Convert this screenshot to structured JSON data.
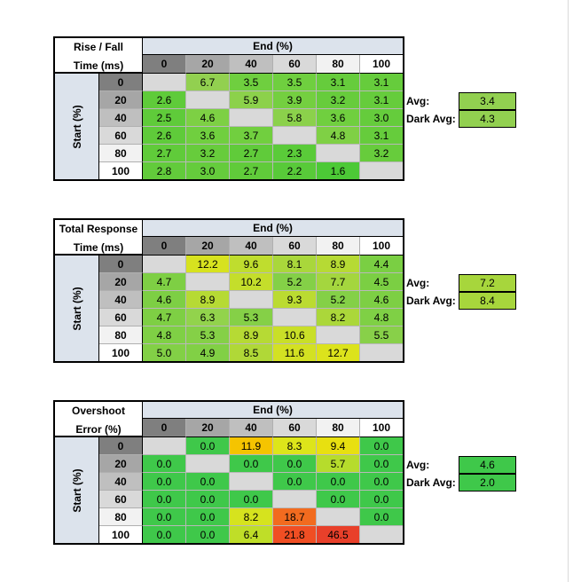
{
  "tables": [
    {
      "title_line1": "Rise / Fall",
      "title_line2": "Time (ms)",
      "end_label": "End (%)",
      "start_label": "Start (%)",
      "columns": [
        "0",
        "20",
        "40",
        "60",
        "80",
        "100"
      ],
      "rows": [
        {
          "label": "0",
          "cells": [
            {
              "v": "",
              "c": "#d9d9d9"
            },
            {
              "v": "6.7",
              "c": "#92d050"
            },
            {
              "v": "3.5",
              "c": "#6fcf3f"
            },
            {
              "v": "3.5",
              "c": "#6fcf3f"
            },
            {
              "v": "3.1",
              "c": "#66cc3c"
            },
            {
              "v": "3.1",
              "c": "#66cc3c"
            }
          ]
        },
        {
          "label": "20",
          "cells": [
            {
              "v": "2.6",
              "c": "#5fcb3a"
            },
            {
              "v": "",
              "c": "#d9d9d9"
            },
            {
              "v": "5.9",
              "c": "#8cd14b"
            },
            {
              "v": "3.9",
              "c": "#74cf40"
            },
            {
              "v": "3.2",
              "c": "#67cc3c"
            },
            {
              "v": "3.1",
              "c": "#66cc3c"
            }
          ]
        },
        {
          "label": "40",
          "cells": [
            {
              "v": "2.5",
              "c": "#5fcb3a"
            },
            {
              "v": "4.6",
              "c": "#7dd044"
            },
            {
              "v": "",
              "c": "#d9d9d9"
            },
            {
              "v": "5.8",
              "c": "#8bd14b"
            },
            {
              "v": "3.6",
              "c": "#70cf3f"
            },
            {
              "v": "3.0",
              "c": "#65cc3c"
            }
          ]
        },
        {
          "label": "60",
          "cells": [
            {
              "v": "2.6",
              "c": "#5fcb3a"
            },
            {
              "v": "3.6",
              "c": "#70cf3f"
            },
            {
              "v": "3.7",
              "c": "#71cf3f"
            },
            {
              "v": "",
              "c": "#d9d9d9"
            },
            {
              "v": "4.8",
              "c": "#7fd045"
            },
            {
              "v": "3.1",
              "c": "#66cc3c"
            }
          ]
        },
        {
          "label": "80",
          "cells": [
            {
              "v": "2.7",
              "c": "#60cb3a"
            },
            {
              "v": "3.2",
              "c": "#67cc3c"
            },
            {
              "v": "2.7",
              "c": "#60cb3a"
            },
            {
              "v": "2.3",
              "c": "#5acb39"
            },
            {
              "v": "",
              "c": "#d9d9d9"
            },
            {
              "v": "3.2",
              "c": "#67cc3c"
            }
          ]
        },
        {
          "label": "100",
          "cells": [
            {
              "v": "2.8",
              "c": "#62cb3b"
            },
            {
              "v": "3.0",
              "c": "#65cc3c"
            },
            {
              "v": "2.7",
              "c": "#60cb3a"
            },
            {
              "v": "2.2",
              "c": "#58ca39"
            },
            {
              "v": "1.6",
              "c": "#4cc936"
            },
            {
              "v": "",
              "c": "#d9d9d9"
            }
          ]
        }
      ],
      "avg_label": "Avg:",
      "avg_value": "3.4",
      "dark_avg_label": "Dark Avg:",
      "dark_avg_value": "4.3",
      "avg_color": "#92d050"
    },
    {
      "title_line1": "Total Response",
      "title_line2": "Time (ms)",
      "end_label": "End (%)",
      "start_label": "Start (%)",
      "columns": [
        "0",
        "20",
        "40",
        "60",
        "80",
        "100"
      ],
      "rows": [
        {
          "label": "0",
          "cells": [
            {
              "v": "",
              "c": "#d9d9d9"
            },
            {
              "v": "12.2",
              "c": "#d7e21f"
            },
            {
              "v": "9.6",
              "c": "#bfdd2e"
            },
            {
              "v": "8.1",
              "c": "#a9d73b"
            },
            {
              "v": "8.9",
              "c": "#b6da34"
            },
            {
              "v": "4.4",
              "c": "#7acf43"
            }
          ]
        },
        {
          "label": "20",
          "cells": [
            {
              "v": "4.7",
              "c": "#7ecf44"
            },
            {
              "v": "",
              "c": "#d9d9d9"
            },
            {
              "v": "10.2",
              "c": "#c4de2b"
            },
            {
              "v": "5.2",
              "c": "#84d047"
            },
            {
              "v": "7.7",
              "c": "#a4d63e"
            },
            {
              "v": "4.5",
              "c": "#7bcf43"
            }
          ]
        },
        {
          "label": "40",
          "cells": [
            {
              "v": "4.6",
              "c": "#7dcf44"
            },
            {
              "v": "8.9",
              "c": "#b6da34"
            },
            {
              "v": "",
              "c": "#d9d9d9"
            },
            {
              "v": "9.3",
              "c": "#bbdb31"
            },
            {
              "v": "5.2",
              "c": "#84d047"
            },
            {
              "v": "4.6",
              "c": "#7dcf44"
            }
          ]
        },
        {
          "label": "60",
          "cells": [
            {
              "v": "4.7",
              "c": "#7ecf44"
            },
            {
              "v": "6.3",
              "c": "#92d34c"
            },
            {
              "v": "5.3",
              "c": "#85d047"
            },
            {
              "v": "",
              "c": "#d9d9d9"
            },
            {
              "v": "8.2",
              "c": "#abd73a"
            },
            {
              "v": "4.8",
              "c": "#7fd045"
            }
          ]
        },
        {
          "label": "80",
          "cells": [
            {
              "v": "4.8",
              "c": "#7fd045"
            },
            {
              "v": "5.3",
              "c": "#85d047"
            },
            {
              "v": "8.9",
              "c": "#b6da34"
            },
            {
              "v": "10.6",
              "c": "#c9df28"
            },
            {
              "v": "",
              "c": "#d9d9d9"
            },
            {
              "v": "5.5",
              "c": "#88d049"
            }
          ]
        },
        {
          "label": "100",
          "cells": [
            {
              "v": "5.0",
              "c": "#82d046"
            },
            {
              "v": "4.9",
              "c": "#81d045"
            },
            {
              "v": "8.5",
              "c": "#b0d837"
            },
            {
              "v": "11.6",
              "c": "#d3e122"
            },
            {
              "v": "12.7",
              "c": "#dce31c"
            },
            {
              "v": "",
              "c": "#d9d9d9"
            }
          ]
        }
      ],
      "avg_label": "Avg:",
      "avg_value": "7.2",
      "dark_avg_label": "Dark Avg:",
      "dark_avg_value": "8.4",
      "avg_color": "#a7d63c"
    },
    {
      "title_line1": "Overshoot",
      "title_line2": "Error (%)",
      "end_label": "End (%)",
      "start_label": "Start (%)",
      "columns": [
        "0",
        "20",
        "40",
        "60",
        "80",
        "100"
      ],
      "rows": [
        {
          "label": "0",
          "cells": [
            {
              "v": "",
              "c": "#d9d9d9"
            },
            {
              "v": "0.0",
              "c": "#3fc84a"
            },
            {
              "v": "11.9",
              "c": "#f5c400"
            },
            {
              "v": "8.3",
              "c": "#dde51a"
            },
            {
              "v": "9.4",
              "c": "#e8e010"
            },
            {
              "v": "0.0",
              "c": "#3fc84a"
            }
          ]
        },
        {
          "label": "20",
          "cells": [
            {
              "v": "0.0",
              "c": "#3fc84a"
            },
            {
              "v": "",
              "c": "#d9d9d9"
            },
            {
              "v": "0.0",
              "c": "#3fc84a"
            },
            {
              "v": "0.0",
              "c": "#3fc84a"
            },
            {
              "v": "5.7",
              "c": "#b6dc2c"
            },
            {
              "v": "0.0",
              "c": "#3fc84a"
            }
          ]
        },
        {
          "label": "40",
          "cells": [
            {
              "v": "0.0",
              "c": "#3fc84a"
            },
            {
              "v": "0.0",
              "c": "#3fc84a"
            },
            {
              "v": "",
              "c": "#d9d9d9"
            },
            {
              "v": "0.0",
              "c": "#3fc84a"
            },
            {
              "v": "0.0",
              "c": "#3fc84a"
            },
            {
              "v": "0.0",
              "c": "#3fc84a"
            }
          ]
        },
        {
          "label": "60",
          "cells": [
            {
              "v": "0.0",
              "c": "#3fc84a"
            },
            {
              "v": "0.0",
              "c": "#3fc84a"
            },
            {
              "v": "0.0",
              "c": "#3fc84a"
            },
            {
              "v": "",
              "c": "#d9d9d9"
            },
            {
              "v": "0.0",
              "c": "#3fc84a"
            },
            {
              "v": "0.0",
              "c": "#3fc84a"
            }
          ]
        },
        {
          "label": "80",
          "cells": [
            {
              "v": "0.0",
              "c": "#3fc84a"
            },
            {
              "v": "0.0",
              "c": "#3fc84a"
            },
            {
              "v": "8.2",
              "c": "#d6e31e"
            },
            {
              "v": "18.7",
              "c": "#f26b1f"
            },
            {
              "v": "",
              "c": "#d9d9d9"
            },
            {
              "v": "0.0",
              "c": "#3fc84a"
            }
          ]
        },
        {
          "label": "100",
          "cells": [
            {
              "v": "0.0",
              "c": "#3fc84a"
            },
            {
              "v": "0.0",
              "c": "#3fc84a"
            },
            {
              "v": "6.4",
              "c": "#bfde28"
            },
            {
              "v": "21.8",
              "c": "#f04e23"
            },
            {
              "v": "46.5",
              "c": "#e8402a"
            },
            {
              "v": "",
              "c": "#d9d9d9"
            }
          ]
        }
      ],
      "avg_label": "Avg:",
      "avg_value": "4.6",
      "dark_avg_label": "Dark Avg:",
      "dark_avg_value": "2.0",
      "avg_color": "#3fc84a"
    }
  ],
  "header_colors": {
    "columns": [
      "#7f7f7f",
      "#a6a6a6",
      "#bfbfbf",
      "#d9d9d9",
      "#f2f2f2",
      "#ffffff"
    ],
    "rows": [
      "#7f7f7f",
      "#a6a6a6",
      "#bfbfbf",
      "#d9d9d9",
      "#f2f2f2",
      "#ffffff"
    ]
  }
}
